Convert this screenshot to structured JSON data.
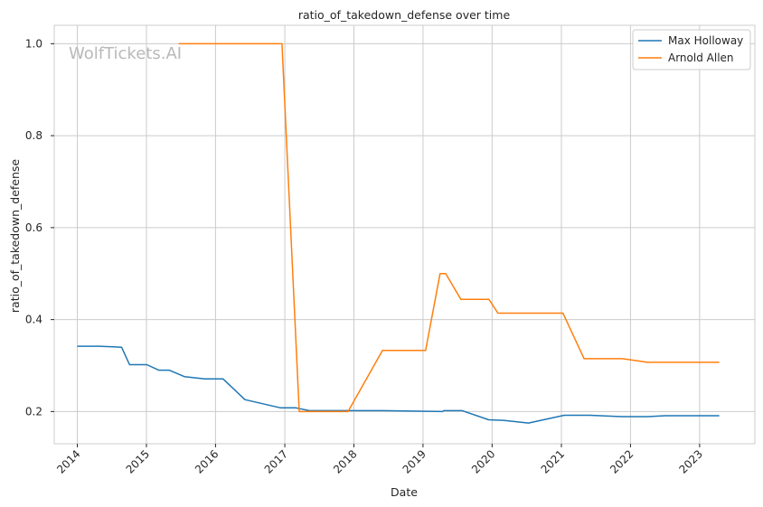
{
  "chart_data": {
    "type": "line",
    "title": "ratio_of_takedown_defense over time",
    "xlabel": "Date",
    "ylabel": "ratio_of_takedown_defense",
    "watermark": "WolfTickets.AI",
    "x_ticks": [
      "2014",
      "2015",
      "2016",
      "2017",
      "2018",
      "2019",
      "2020",
      "2021",
      "2022",
      "2023"
    ],
    "y_ticks": [
      "0.2",
      "0.4",
      "0.6",
      "0.8",
      "1.0"
    ],
    "xlim": [
      "2013-09-01",
      "2023-10-20"
    ],
    "ylim": [
      0.13,
      1.04
    ],
    "grid": true,
    "legend_position": "top-right",
    "series": [
      {
        "name": "Max Holloway",
        "color": "#1f77b4",
        "points": [
          [
            "2014-01-01",
            0.342
          ],
          [
            "2014-04-26",
            0.342
          ],
          [
            "2014-08-23",
            0.34
          ],
          [
            "2014-10-04",
            0.302
          ],
          [
            "2015-01-03",
            0.302
          ],
          [
            "2015-03-07",
            0.29
          ],
          [
            "2015-05-01",
            0.29
          ],
          [
            "2015-07-20",
            0.276
          ],
          [
            "2015-11-05",
            0.271
          ],
          [
            "2016-02-10",
            0.271
          ],
          [
            "2016-06-04",
            0.226
          ],
          [
            "2016-12-10",
            0.208
          ],
          [
            "2017-03-01",
            0.208
          ],
          [
            "2017-05-10",
            0.202
          ],
          [
            "2017-12-02",
            0.202
          ],
          [
            "2018-06-01",
            0.202
          ],
          [
            "2019-04-15",
            0.2
          ],
          [
            "2019-04-20",
            0.202
          ],
          [
            "2019-07-27",
            0.202
          ],
          [
            "2019-12-14",
            0.182
          ],
          [
            "2020-03-01",
            0.181
          ],
          [
            "2020-07-11",
            0.175
          ],
          [
            "2021-01-16",
            0.192
          ],
          [
            "2021-06-01",
            0.192
          ],
          [
            "2021-11-13",
            0.189
          ],
          [
            "2022-04-01",
            0.189
          ],
          [
            "2022-07-02",
            0.191
          ],
          [
            "2023-04-15",
            0.191
          ]
        ]
      },
      {
        "name": "Arnold Allen",
        "color": "#ff7f0e",
        "points": [
          [
            "2015-06-20",
            1.0
          ],
          [
            "2016-12-17",
            1.0
          ],
          [
            "2017-03-18",
            0.2
          ],
          [
            "2017-12-01",
            0.2
          ],
          [
            "2018-06-01",
            0.333
          ],
          [
            "2019-01-15",
            0.333
          ],
          [
            "2019-04-01",
            0.5
          ],
          [
            "2019-05-01",
            0.5
          ],
          [
            "2019-07-20",
            0.444
          ],
          [
            "2019-12-15",
            0.444
          ],
          [
            "2020-02-01",
            0.414
          ],
          [
            "2020-05-01",
            0.414
          ],
          [
            "2021-01-09",
            0.414
          ],
          [
            "2021-05-01",
            0.315
          ],
          [
            "2021-11-20",
            0.315
          ],
          [
            "2022-04-01",
            0.307
          ],
          [
            "2023-04-15",
            0.307
          ]
        ]
      }
    ]
  }
}
